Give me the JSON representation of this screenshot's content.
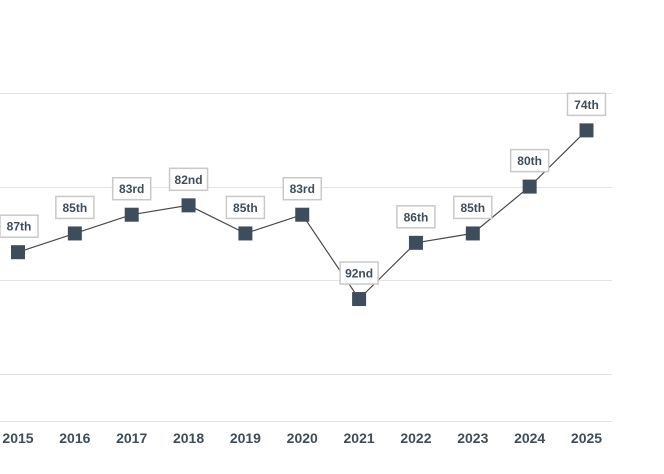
{
  "chart_data": {
    "type": "line",
    "x": [
      "2015",
      "2016",
      "2017",
      "2018",
      "2019",
      "2020",
      "2021",
      "2022",
      "2023",
      "2024",
      "2025"
    ],
    "series": [
      {
        "values": [
          87,
          85,
          83,
          82,
          85,
          83,
          92,
          86,
          85,
          80,
          74
        ],
        "labels": [
          "87th",
          "85th",
          "83rd",
          "82nd",
          "85th",
          "83rd",
          "92nd",
          "86th",
          "85th",
          "80th",
          "74th"
        ]
      }
    ],
    "y_inverted": true,
    "ylim": [
      100,
      60
    ],
    "grid": true,
    "marker": "square",
    "colors": {
      "marker": "#3d4d5c",
      "line": "#4a4a4a",
      "label_text": "#3f4d5a",
      "gridline": "#e3e3e3"
    }
  }
}
